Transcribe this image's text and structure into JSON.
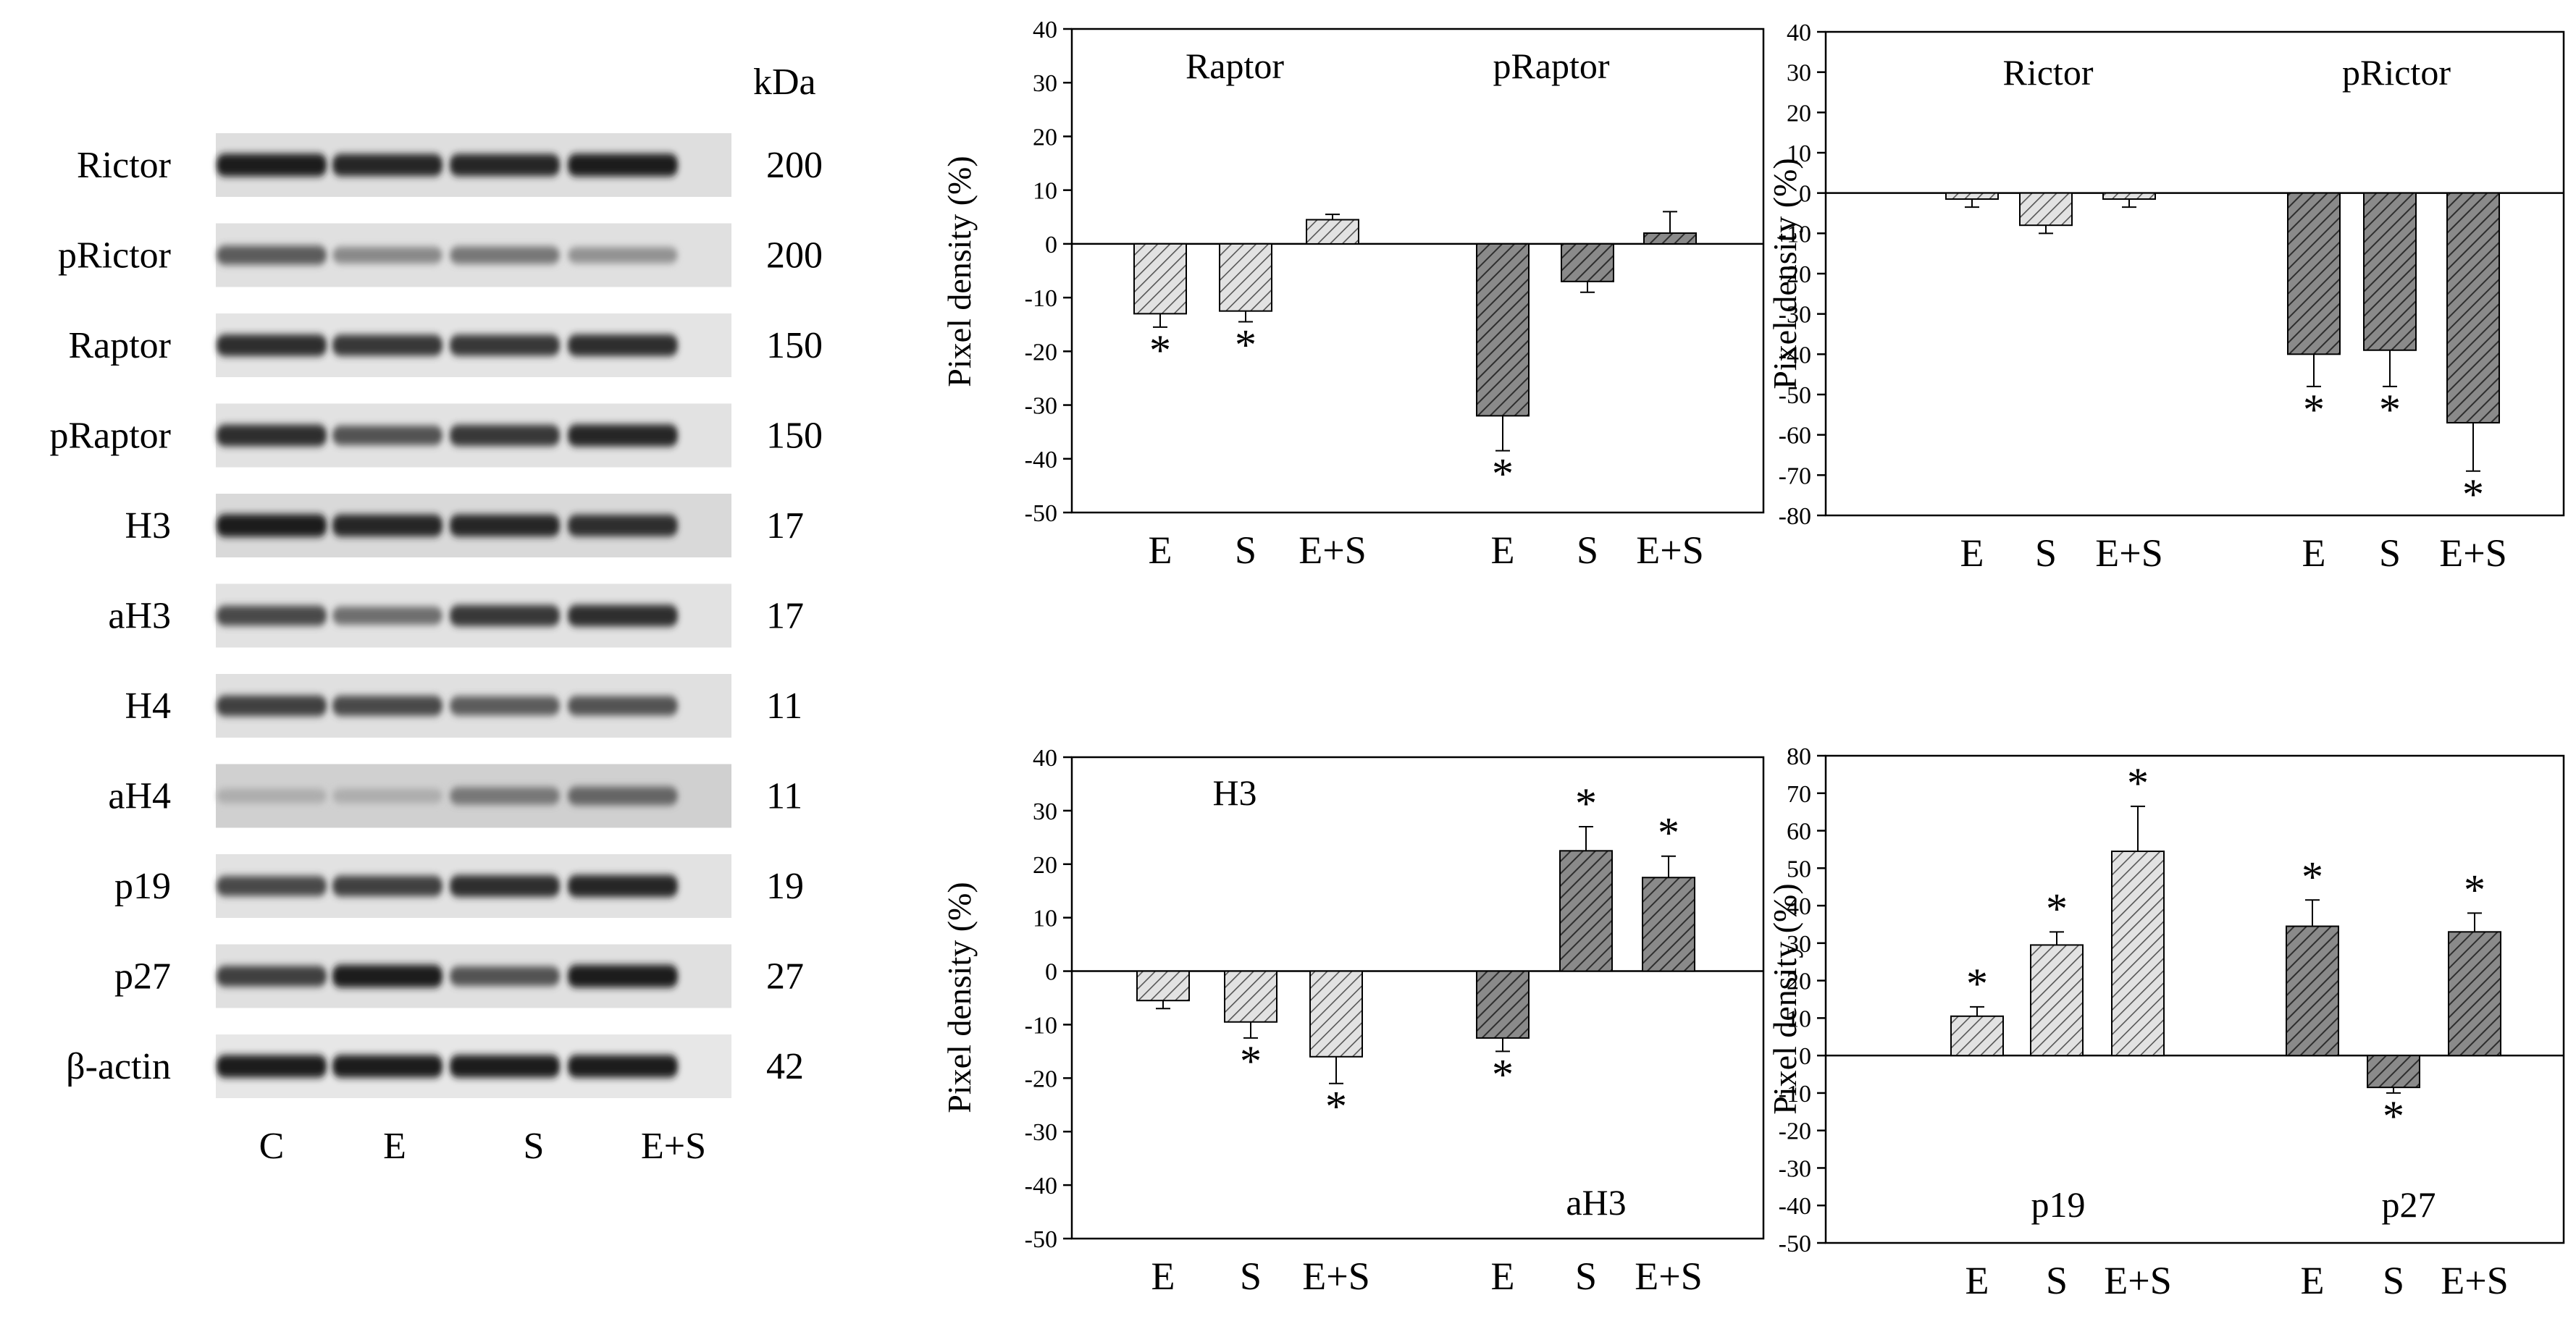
{
  "western_blot": {
    "kda_header": "kDa",
    "lanes": [
      "C",
      "E",
      "S",
      "E+S"
    ],
    "rows": [
      {
        "label": "Rictor",
        "kda": "200",
        "intensity": [
          0.95,
          0.9,
          0.9,
          0.95
        ],
        "bg": 0.15
      },
      {
        "label": "pRictor",
        "kda": "200",
        "intensity": [
          0.6,
          0.35,
          0.45,
          0.3
        ],
        "bg": 0.12
      },
      {
        "label": "Raptor",
        "kda": "150",
        "intensity": [
          0.85,
          0.8,
          0.8,
          0.85
        ],
        "bg": 0.08
      },
      {
        "label": "pRaptor",
        "kda": "150",
        "intensity": [
          0.85,
          0.65,
          0.8,
          0.9
        ],
        "bg": 0.1
      },
      {
        "label": "H3",
        "kda": "17",
        "intensity": [
          0.95,
          0.9,
          0.9,
          0.85
        ],
        "bg": 0.2
      },
      {
        "label": "aH3",
        "kda": "17",
        "intensity": [
          0.7,
          0.5,
          0.8,
          0.85
        ],
        "bg": 0.1
      },
      {
        "label": "H4",
        "kda": "11",
        "intensity": [
          0.75,
          0.7,
          0.6,
          0.65
        ],
        "bg": 0.12
      },
      {
        "label": "aH4",
        "kda": "11",
        "intensity": [
          0.15,
          0.15,
          0.45,
          0.55
        ],
        "bg": 0.3
      },
      {
        "label": "p19",
        "kda": "19",
        "intensity": [
          0.7,
          0.75,
          0.85,
          0.9
        ],
        "bg": 0.1
      },
      {
        "label": "p27",
        "kda": "27",
        "intensity": [
          0.75,
          0.95,
          0.65,
          0.95
        ],
        "bg": 0.12
      },
      {
        "label": "β-actin",
        "kda": "42",
        "intensity": [
          0.95,
          0.95,
          0.95,
          0.95
        ],
        "bg": 0.05
      }
    ]
  },
  "chart_data": [
    {
      "type": "bar",
      "title": "",
      "xlabel": "",
      "ylabel": "Pixel density (%)",
      "ylim": [
        -50,
        40
      ],
      "yticks": [
        40,
        30,
        20,
        10,
        0,
        -10,
        -20,
        -30,
        -40,
        -50
      ],
      "grid": false,
      "groups": [
        {
          "name": "Raptor",
          "shade": "light",
          "bars": [
            {
              "label": "E",
              "value": -13,
              "error": 2.5,
              "sig": true
            },
            {
              "label": "S",
              "value": -12.5,
              "error": 2,
              "sig": true
            },
            {
              "label": "E+S",
              "value": 4.5,
              "error": 1,
              "sig": false
            }
          ]
        },
        {
          "name": "pRaptor",
          "shade": "dark",
          "bars": [
            {
              "label": "E",
              "value": -32,
              "error": 6.5,
              "sig": true
            },
            {
              "label": "S",
              "value": -7,
              "error": 2,
              "sig": false
            },
            {
              "label": "E+S",
              "value": 2,
              "error": 4,
              "sig": false
            }
          ]
        }
      ]
    },
    {
      "type": "bar",
      "title": "",
      "xlabel": "",
      "ylabel": "Pixel density (%)",
      "ylim": [
        -80,
        40
      ],
      "yticks": [
        40,
        30,
        20,
        10,
        0,
        -10,
        -20,
        -30,
        -40,
        -50,
        -60,
        -70,
        -80
      ],
      "grid": false,
      "groups": [
        {
          "name": "Rictor",
          "shade": "light",
          "bars": [
            {
              "label": "E",
              "value": -1.5,
              "error": 2,
              "sig": false
            },
            {
              "label": "S",
              "value": -8,
              "error": 2,
              "sig": false
            },
            {
              "label": "E+S",
              "value": -1.5,
              "error": 2,
              "sig": false
            }
          ]
        },
        {
          "name": "pRictor",
          "shade": "dark",
          "bars": [
            {
              "label": "E",
              "value": -40,
              "error": 8,
              "sig": true
            },
            {
              "label": "S",
              "value": -39,
              "error": 9,
              "sig": true
            },
            {
              "label": "E+S",
              "value": -57,
              "error": 12,
              "sig": true
            }
          ]
        }
      ]
    },
    {
      "type": "bar",
      "title": "",
      "xlabel": "",
      "ylabel": "Pixel density (%)",
      "ylim": [
        -50,
        40
      ],
      "yticks": [
        40,
        30,
        20,
        10,
        0,
        -10,
        -20,
        -30,
        -40,
        -50
      ],
      "grid": false,
      "groups": [
        {
          "name": "H3",
          "shade": "light",
          "bars": [
            {
              "label": "E",
              "value": -5.5,
              "error": 1.5,
              "sig": false
            },
            {
              "label": "S",
              "value": -9.5,
              "error": 3,
              "sig": true
            },
            {
              "label": "E+S",
              "value": -16,
              "error": 5,
              "sig": true
            }
          ]
        },
        {
          "name": "aH3",
          "shade": "dark",
          "bars": [
            {
              "label": "E",
              "value": -12.5,
              "error": 2.5,
              "sig": true
            },
            {
              "label": "S",
              "value": 22.5,
              "error": 4.5,
              "sig": true
            },
            {
              "label": "E+S",
              "value": 17.5,
              "error": 4,
              "sig": true
            }
          ]
        }
      ]
    },
    {
      "type": "bar",
      "title": "",
      "xlabel": "",
      "ylabel": "Pixel density (%)",
      "ylim": [
        -50,
        80
      ],
      "yticks": [
        80,
        70,
        60,
        50,
        40,
        30,
        20,
        10,
        0,
        -10,
        -20,
        -30,
        -40,
        -50
      ],
      "grid": false,
      "groups": [
        {
          "name": "p19",
          "shade": "light",
          "bars": [
            {
              "label": "E",
              "value": 10.5,
              "error": 2.5,
              "sig": true
            },
            {
              "label": "S",
              "value": 29.5,
              "error": 3.5,
              "sig": true
            },
            {
              "label": "E+S",
              "value": 54.5,
              "error": 12,
              "sig": true
            }
          ]
        },
        {
          "name": "p27",
          "shade": "dark",
          "bars": [
            {
              "label": "E",
              "value": 34.5,
              "error": 7,
              "sig": true
            },
            {
              "label": "S",
              "value": -8.5,
              "error": 1.5,
              "sig": true
            },
            {
              "label": "E+S",
              "value": 33,
              "error": 5,
              "sig": true
            }
          ]
        }
      ]
    }
  ]
}
